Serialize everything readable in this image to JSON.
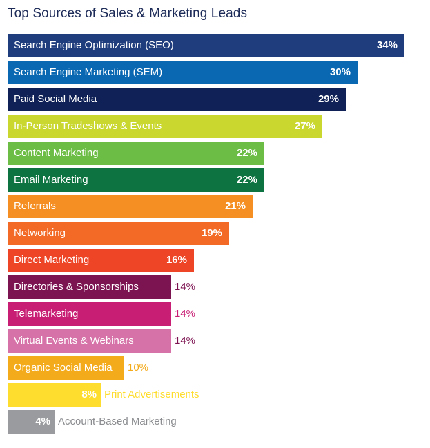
{
  "chart_data": {
    "type": "bar",
    "orientation": "horizontal",
    "title": "Top Sources of Sales & Marketing Leads",
    "categories": [
      "Search Engine Optimization (SEO)",
      "Search Engine Marketing (SEM)",
      "Paid Social Media",
      "In-Person Tradeshows & Events",
      "Content Marketing",
      "Email Marketing",
      "Referrals",
      "Networking",
      "Direct Marketing",
      "Directories & Sponsorships",
      "Telemarketing",
      "Virtual Events & Webinars",
      "Organic Social Media",
      "Print Advertisements",
      "Account-Based Marketing"
    ],
    "values": [
      34,
      30,
      29,
      27,
      22,
      22,
      21,
      19,
      16,
      14,
      14,
      14,
      10,
      8,
      4
    ],
    "value_labels": [
      "34%",
      "30%",
      "29%",
      "27%",
      "22%",
      "22%",
      "21%",
      "19%",
      "16%",
      "14%",
      "14%",
      "14%",
      "10%",
      "8%",
      "4%"
    ],
    "colors": [
      "#1f3c7d",
      "#0a68b3",
      "#0f2156",
      "#c9d72e",
      "#6cbd45",
      "#0d7340",
      "#f58f24",
      "#f26a25",
      "#ee4526",
      "#7d1452",
      "#c81f74",
      "#d672a7",
      "#f4ab1b",
      "#fedd2f",
      "#999b9e"
    ],
    "value_units": "%"
  }
}
